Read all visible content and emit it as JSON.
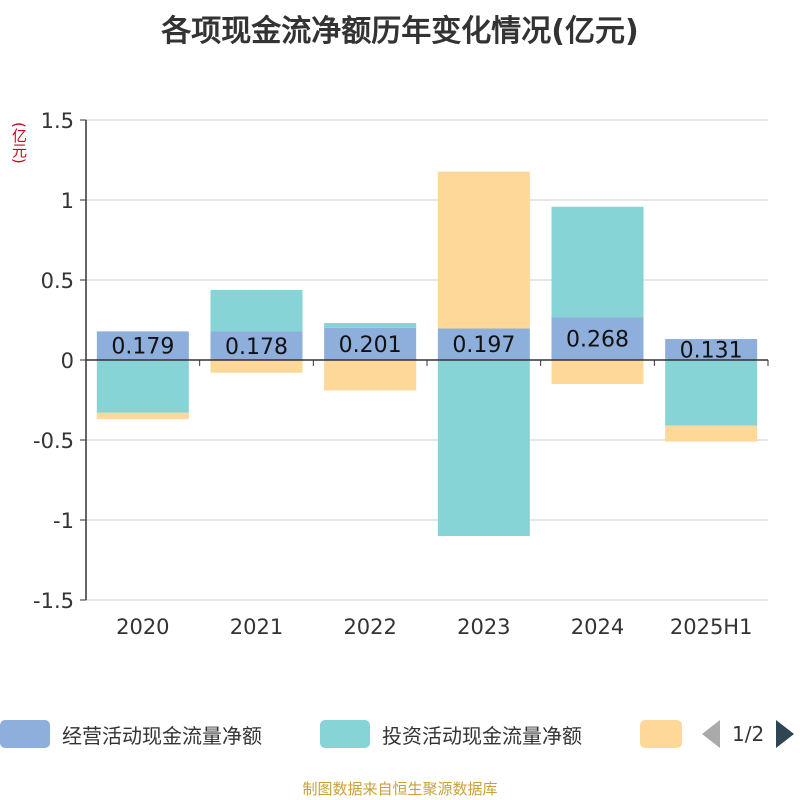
{
  "title": "各项现金流净额历年变化情况(亿元)",
  "unit": "(亿元)",
  "source": "制图数据来自恒生聚源数据库",
  "legend": {
    "items": [
      {
        "label": "经营活动现金流量净额",
        "color": "#8eaedc"
      },
      {
        "label": "投资活动现金流量净额",
        "color": "#86d4d6"
      },
      {
        "label": "",
        "color": "#fdd899"
      }
    ],
    "page": "1/2"
  },
  "chart_data": {
    "type": "bar",
    "stacked": true,
    "title": "各项现金流净额历年变化情况(亿元)",
    "ylabel": "(亿元)",
    "categories": [
      "2020",
      "2021",
      "2022",
      "2023",
      "2024",
      "2025H1"
    ],
    "ylim": [
      -1.5,
      1.5
    ],
    "yticks": [
      1.5,
      1,
      0.5,
      0,
      -0.5,
      -1,
      -1.5
    ],
    "ytick_labels": [
      "1.5",
      "1",
      "0.5",
      "0",
      "-0.5",
      "-1",
      "-1.5"
    ],
    "grid": true,
    "series": [
      {
        "name": "经营活动现金流量净额",
        "color": "#8eaedc",
        "values": [
          0.179,
          0.178,
          0.201,
          0.197,
          0.268,
          0.131
        ],
        "labels": [
          "0.179",
          "0.178",
          "0.201",
          "0.197",
          "0.268",
          "0.131"
        ]
      },
      {
        "name": "投资活动现金流量净额",
        "color": "#86d4d6",
        "values": [
          -0.33,
          0.26,
          0.03,
          -1.1,
          0.69,
          -0.41
        ]
      },
      {
        "name": "",
        "color": "#fdd899",
        "values": [
          -0.04,
          -0.08,
          -0.19,
          0.98,
          -0.15,
          -0.1
        ]
      }
    ]
  }
}
